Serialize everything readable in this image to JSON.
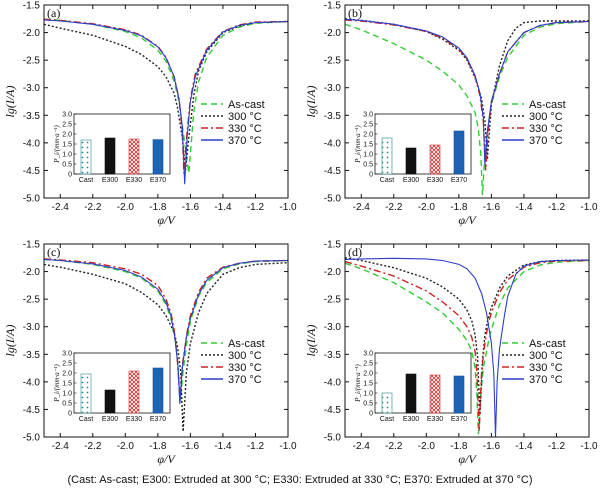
{
  "chart_data": [
    {
      "type": "line",
      "panel_label": "(a)",
      "xlabel": "φ/V",
      "ylabel": "lg(I/A)",
      "xlim": [
        -2.5,
        -1.0
      ],
      "ylim": [
        -5.0,
        -1.5
      ],
      "xticks": [
        "-2.4",
        "-2.2",
        "-2.0",
        "-1.8",
        "-1.6",
        "-1.4",
        "-1.2",
        "-1.0"
      ],
      "yticks": [
        "-1.5",
        "-2.0",
        "-2.5",
        "-3.0",
        "-3.5",
        "-4.0",
        "-4.5",
        "-5.0"
      ],
      "series": [
        {
          "name": "As-cast",
          "color": "#33cc33",
          "dash": "6,4",
          "x": [
            -2.5,
            -2.4,
            -2.2,
            -2.0,
            -1.9,
            -1.8,
            -1.75,
            -1.7,
            -1.67,
            -1.64,
            -1.61,
            -1.6,
            -1.58,
            -1.55,
            -1.5,
            -1.4,
            -1.3,
            -1.2,
            -1.0
          ],
          "y": [
            -1.76,
            -1.78,
            -1.85,
            -1.98,
            -2.1,
            -2.32,
            -2.52,
            -2.88,
            -3.25,
            -3.9,
            -4.55,
            -4.2,
            -3.45,
            -2.9,
            -2.45,
            -2.05,
            -1.9,
            -1.83,
            -1.8
          ]
        },
        {
          "name": "300 °C",
          "color": "#222222",
          "dash": "2,2",
          "x": [
            -2.5,
            -2.4,
            -2.2,
            -2.0,
            -1.9,
            -1.8,
            -1.75,
            -1.7,
            -1.68,
            -1.65,
            -1.63,
            -1.61,
            -1.58,
            -1.55,
            -1.5,
            -1.4,
            -1.3,
            -1.2,
            -1.0
          ],
          "y": [
            -1.85,
            -1.92,
            -2.05,
            -2.25,
            -2.4,
            -2.62,
            -2.8,
            -3.1,
            -3.35,
            -3.9,
            -4.5,
            -3.9,
            -3.15,
            -2.7,
            -2.35,
            -2.0,
            -1.88,
            -1.82,
            -1.8
          ]
        },
        {
          "name": "330 °C",
          "color": "#cc2222",
          "dash": "7,3,2,3",
          "x": [
            -2.5,
            -2.4,
            -2.2,
            -2.0,
            -1.9,
            -1.8,
            -1.75,
            -1.7,
            -1.67,
            -1.65,
            -1.64,
            -1.62,
            -1.6,
            -1.57,
            -1.5,
            -1.4,
            -1.3,
            -1.2,
            -1.0
          ],
          "y": [
            -1.76,
            -1.78,
            -1.84,
            -1.95,
            -2.05,
            -2.25,
            -2.45,
            -2.8,
            -3.2,
            -3.8,
            -4.55,
            -3.8,
            -3.2,
            -2.75,
            -2.3,
            -1.98,
            -1.86,
            -1.81,
            -1.8
          ]
        },
        {
          "name": "370 °C",
          "color": "#2b3fcc",
          "dash": "",
          "x": [
            -2.5,
            -2.4,
            -2.2,
            -2.0,
            -1.9,
            -1.8,
            -1.75,
            -1.7,
            -1.67,
            -1.65,
            -1.635,
            -1.62,
            -1.6,
            -1.57,
            -1.5,
            -1.4,
            -1.3,
            -1.2,
            -1.0
          ],
          "y": [
            -1.77,
            -1.79,
            -1.85,
            -1.96,
            -2.06,
            -2.26,
            -2.46,
            -2.8,
            -3.2,
            -3.7,
            -4.75,
            -3.9,
            -3.25,
            -2.8,
            -2.32,
            -1.99,
            -1.87,
            -1.82,
            -1.8
          ]
        }
      ],
      "inset": {
        "ylabel": "P_i/(mm·a⁻¹)",
        "ylim": [
          0,
          3.0
        ],
        "yticks": [
          "0",
          "0.5",
          "1.0",
          "1.5",
          "2.0",
          "2.5",
          "3.0"
        ],
        "categories": [
          "Cast",
          "E300",
          "E330",
          "E370"
        ],
        "values": [
          1.7,
          1.8,
          1.75,
          1.72
        ]
      }
    },
    {
      "type": "line",
      "panel_label": "(b)",
      "xlabel": "φ/V",
      "ylabel": "lg(I/A)",
      "xlim": [
        -2.5,
        -1.0
      ],
      "ylim": [
        -5.0,
        -1.5
      ],
      "xticks": [
        "-2.4",
        "-2.2",
        "-2.0",
        "-1.8",
        "-1.6",
        "-1.4",
        "-1.2",
        "-1.0"
      ],
      "yticks": [
        "-1.5",
        "-2.0",
        "-2.5",
        "-3.0",
        "-3.5",
        "-4.0",
        "-4.5",
        "-5.0"
      ],
      "series": [
        {
          "name": "As-cast",
          "color": "#33cc33",
          "dash": "6,4",
          "x": [
            -2.5,
            -2.4,
            -2.2,
            -2.0,
            -1.9,
            -1.8,
            -1.75,
            -1.7,
            -1.68,
            -1.665,
            -1.655,
            -1.64,
            -1.62,
            -1.6,
            -1.55,
            -1.5,
            -1.4,
            -1.3,
            -1.2,
            -1.0
          ],
          "y": [
            -1.85,
            -1.95,
            -2.2,
            -2.5,
            -2.7,
            -2.95,
            -3.15,
            -3.45,
            -3.75,
            -4.2,
            -4.95,
            -4.2,
            -3.7,
            -3.3,
            -2.8,
            -2.45,
            -2.05,
            -1.9,
            -1.84,
            -1.8
          ]
        },
        {
          "name": "300 °C",
          "color": "#222222",
          "dash": "2,2",
          "x": [
            -2.5,
            -2.4,
            -2.2,
            -2.0,
            -1.9,
            -1.8,
            -1.75,
            -1.7,
            -1.66,
            -1.64,
            -1.625,
            -1.61,
            -1.6,
            -1.55,
            -1.5,
            -1.45,
            -1.4,
            -1.3,
            -1.2,
            -1.0
          ],
          "y": [
            -1.75,
            -1.78,
            -1.85,
            -1.98,
            -2.12,
            -2.32,
            -2.5,
            -2.82,
            -3.2,
            -3.6,
            -4.3,
            -3.7,
            -3.3,
            -2.6,
            -2.15,
            -1.92,
            -1.82,
            -1.79,
            -1.79,
            -1.79
          ]
        },
        {
          "name": "330 °C",
          "color": "#cc2222",
          "dash": "7,3,2,3",
          "x": [
            -2.5,
            -2.4,
            -2.2,
            -2.0,
            -1.9,
            -1.8,
            -1.75,
            -1.7,
            -1.67,
            -1.65,
            -1.635,
            -1.62,
            -1.6,
            -1.55,
            -1.5,
            -1.4,
            -1.3,
            -1.2,
            -1.0
          ],
          "y": [
            -1.77,
            -1.79,
            -1.86,
            -1.98,
            -2.1,
            -2.3,
            -2.48,
            -2.8,
            -3.15,
            -3.6,
            -4.5,
            -3.8,
            -3.25,
            -2.75,
            -2.35,
            -2.0,
            -1.87,
            -1.82,
            -1.8
          ]
        },
        {
          "name": "370 °C",
          "color": "#2b3fcc",
          "dash": "",
          "x": [
            -2.5,
            -2.4,
            -2.2,
            -2.0,
            -1.9,
            -1.8,
            -1.75,
            -1.7,
            -1.67,
            -1.65,
            -1.64,
            -1.625,
            -1.6,
            -1.55,
            -1.5,
            -1.4,
            -1.3,
            -1.2,
            -1.0
          ],
          "y": [
            -1.76,
            -1.78,
            -1.85,
            -1.97,
            -2.08,
            -2.28,
            -2.46,
            -2.78,
            -3.1,
            -3.55,
            -4.4,
            -3.8,
            -3.25,
            -2.75,
            -2.35,
            -2.0,
            -1.87,
            -1.82,
            -1.8
          ]
        }
      ],
      "inset": {
        "ylabel": "P_i/(mm·a⁻¹)",
        "ylim": [
          0,
          3.0
        ],
        "yticks": [
          "0",
          "0.5",
          "1.0",
          "1.5",
          "2.0",
          "2.5",
          "3.0"
        ],
        "categories": [
          "Cast",
          "E300",
          "E330",
          "E370"
        ],
        "values": [
          1.8,
          1.3,
          1.45,
          2.15
        ]
      }
    },
    {
      "type": "line",
      "panel_label": "(c)",
      "xlabel": "φ/V",
      "ylabel": "lg(I/A)",
      "xlim": [
        -2.5,
        -1.0
      ],
      "ylim": [
        -5.0,
        -1.5
      ],
      "xticks": [
        "-2.4",
        "-2.2",
        "-2.0",
        "-1.8",
        "-1.6",
        "-1.4",
        "-1.2",
        "-1.0"
      ],
      "yticks": [
        "-1.5",
        "-2.0",
        "-2.5",
        "-3.0",
        "-3.5",
        "-4.0",
        "-4.5",
        "-5.0"
      ],
      "series": [
        {
          "name": "As-cast",
          "color": "#33cc33",
          "dash": "6,4",
          "x": [
            -2.5,
            -2.4,
            -2.2,
            -2.0,
            -1.9,
            -1.8,
            -1.75,
            -1.72,
            -1.69,
            -1.675,
            -1.66,
            -1.645,
            -1.62,
            -1.6,
            -1.55,
            -1.5,
            -1.4,
            -1.3,
            -1.2,
            -1.0
          ],
          "y": [
            -1.78,
            -1.8,
            -1.87,
            -2.0,
            -2.12,
            -2.35,
            -2.6,
            -2.85,
            -3.3,
            -3.8,
            -4.35,
            -3.8,
            -3.25,
            -2.9,
            -2.45,
            -2.2,
            -1.95,
            -1.86,
            -1.82,
            -1.8
          ]
        },
        {
          "name": "300 °C",
          "color": "#222222",
          "dash": "2,2",
          "x": [
            -2.5,
            -2.4,
            -2.2,
            -2.0,
            -1.9,
            -1.8,
            -1.75,
            -1.7,
            -1.68,
            -1.66,
            -1.645,
            -1.625,
            -1.6,
            -1.55,
            -1.5,
            -1.4,
            -1.3,
            -1.2,
            -1.0
          ],
          "y": [
            -1.87,
            -1.92,
            -2.05,
            -2.22,
            -2.38,
            -2.6,
            -2.8,
            -3.1,
            -3.35,
            -3.8,
            -4.9,
            -3.85,
            -3.3,
            -2.75,
            -2.4,
            -2.05,
            -1.93,
            -1.87,
            -1.84
          ]
        },
        {
          "name": "330 °C",
          "color": "#cc2222",
          "dash": "7,3,2,3",
          "x": [
            -2.5,
            -2.4,
            -2.2,
            -2.0,
            -1.9,
            -1.8,
            -1.75,
            -1.72,
            -1.7,
            -1.68,
            -1.665,
            -1.65,
            -1.62,
            -1.6,
            -1.55,
            -1.5,
            -1.4,
            -1.3,
            -1.2,
            -1.0
          ],
          "y": [
            -1.77,
            -1.79,
            -1.84,
            -1.95,
            -2.05,
            -2.25,
            -2.5,
            -2.75,
            -3.05,
            -3.6,
            -4.3,
            -3.7,
            -3.1,
            -2.8,
            -2.38,
            -2.12,
            -1.92,
            -1.85,
            -1.81,
            -1.8
          ]
        },
        {
          "name": "370 °C",
          "color": "#2b3fcc",
          "dash": "",
          "x": [
            -2.5,
            -2.4,
            -2.2,
            -2.0,
            -1.9,
            -1.8,
            -1.75,
            -1.72,
            -1.695,
            -1.675,
            -1.665,
            -1.65,
            -1.625,
            -1.6,
            -1.55,
            -1.5,
            -1.4,
            -1.3,
            -1.2,
            -1.0
          ],
          "y": [
            -1.78,
            -1.8,
            -1.86,
            -1.98,
            -2.1,
            -2.32,
            -2.56,
            -2.8,
            -3.2,
            -3.75,
            -4.4,
            -3.75,
            -3.2,
            -2.85,
            -2.42,
            -2.16,
            -1.93,
            -1.85,
            -1.81,
            -1.8
          ]
        }
      ],
      "inset": {
        "ylabel": "P_i/(mm·a⁻¹)",
        "ylim": [
          0,
          3.0
        ],
        "yticks": [
          "0",
          "0.5",
          "1.0",
          "1.5",
          "2.0",
          "2.5",
          "3.0"
        ],
        "categories": [
          "Cast",
          "E300",
          "E330",
          "E370"
        ],
        "values": [
          1.95,
          1.15,
          2.1,
          2.25
        ]
      }
    },
    {
      "type": "line",
      "panel_label": "(d)",
      "xlabel": "φ/V",
      "ylabel": "lg(I/A)",
      "xlim": [
        -2.5,
        -1.0
      ],
      "ylim": [
        -5.0,
        -1.5
      ],
      "xticks": [
        "-2.4",
        "-2.2",
        "-2.0",
        "-1.8",
        "-1.6",
        "-1.4",
        "-1.2",
        "-1.0"
      ],
      "yticks": [
        "-1.5",
        "-2.0",
        "-2.5",
        "-3.0",
        "-3.5",
        "-4.0",
        "-4.5",
        "-5.0"
      ],
      "series": [
        {
          "name": "As-cast",
          "color": "#33cc33",
          "dash": "6,4",
          "x": [
            -2.5,
            -2.4,
            -2.2,
            -2.0,
            -1.9,
            -1.8,
            -1.75,
            -1.72,
            -1.7,
            -1.69,
            -1.68,
            -1.665,
            -1.65,
            -1.62,
            -1.6,
            -1.55,
            -1.5,
            -1.4,
            -1.3,
            -1.2,
            -1.0
          ],
          "y": [
            -1.85,
            -1.95,
            -2.2,
            -2.55,
            -2.75,
            -3.05,
            -3.25,
            -3.45,
            -3.75,
            -4.2,
            -4.95,
            -4.2,
            -3.75,
            -3.3,
            -3.05,
            -2.6,
            -2.3,
            -2.0,
            -1.88,
            -1.83,
            -1.8
          ]
        },
        {
          "name": "300 °C",
          "color": "#222222",
          "dash": "2,2",
          "x": [
            -2.5,
            -2.4,
            -2.2,
            -2.0,
            -1.9,
            -1.8,
            -1.75,
            -1.72,
            -1.7,
            -1.685,
            -1.67,
            -1.655,
            -1.64,
            -1.62,
            -1.6,
            -1.55,
            -1.5,
            -1.4,
            -1.3,
            -1.2,
            -1.0
          ],
          "y": [
            -1.75,
            -1.8,
            -1.93,
            -2.12,
            -2.28,
            -2.5,
            -2.7,
            -2.9,
            -3.15,
            -3.55,
            -4.6,
            -3.6,
            -3.15,
            -2.85,
            -2.65,
            -2.3,
            -2.08,
            -1.88,
            -1.82,
            -1.8,
            -1.79
          ]
        },
        {
          "name": "330 °C",
          "color": "#cc2222",
          "dash": "7,3,2,3",
          "x": [
            -2.5,
            -2.4,
            -2.2,
            -2.0,
            -1.9,
            -1.8,
            -1.75,
            -1.72,
            -1.7,
            -1.69,
            -1.675,
            -1.66,
            -1.64,
            -1.62,
            -1.6,
            -1.55,
            -1.5,
            -1.4,
            -1.3,
            -1.2,
            -1.0
          ],
          "y": [
            -1.82,
            -1.9,
            -2.08,
            -2.35,
            -2.55,
            -2.8,
            -3.0,
            -3.2,
            -3.45,
            -3.8,
            -4.9,
            -3.8,
            -3.3,
            -2.95,
            -2.75,
            -2.38,
            -2.15,
            -1.92,
            -1.84,
            -1.81,
            -1.8
          ]
        },
        {
          "name": "370 °C",
          "color": "#2b3fcc",
          "dash": "",
          "x": [
            -2.5,
            -2.4,
            -2.2,
            -2.0,
            -1.9,
            -1.8,
            -1.75,
            -1.7,
            -1.66,
            -1.63,
            -1.6,
            -1.585,
            -1.575,
            -1.565,
            -1.55,
            -1.52,
            -1.5,
            -1.45,
            -1.4,
            -1.3,
            -1.2,
            -1.0
          ],
          "y": [
            -1.78,
            -1.77,
            -1.76,
            -1.77,
            -1.8,
            -1.87,
            -1.95,
            -2.12,
            -2.4,
            -2.75,
            -3.3,
            -3.85,
            -5.0,
            -4.0,
            -3.4,
            -2.8,
            -2.45,
            -2.05,
            -1.9,
            -1.82,
            -1.8,
            -1.79
          ]
        }
      ],
      "inset": {
        "ylabel": "P_i/(mm·a⁻¹)",
        "ylim": [
          0,
          3.0
        ],
        "yticks": [
          "0",
          "0.5",
          "1.0",
          "1.5",
          "2.0",
          "2.5",
          "3.0"
        ],
        "categories": [
          "Cast",
          "E300",
          "E330",
          "E370"
        ],
        "values": [
          1.0,
          1.95,
          1.9,
          1.85
        ]
      }
    }
  ],
  "inset_styles": [
    "dots",
    "solid-black",
    "cross-red",
    "solid-blue"
  ],
  "caption": "(Cast: As-cast; E300: Extruded at 300 °C; E330: Extruded at 330 °C; E370: Extruded at 370 °C)"
}
